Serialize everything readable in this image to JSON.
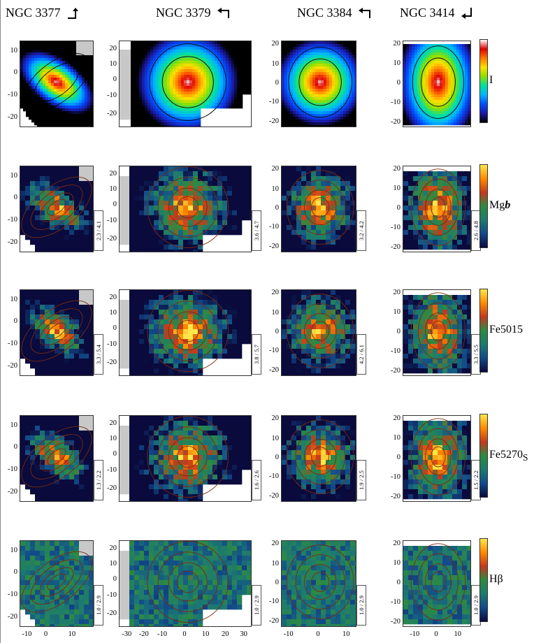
{
  "galaxies": [
    {
      "name": "NGC 3377",
      "arrow": "up-right-arrow"
    },
    {
      "name": "NGC 3379",
      "arrow": "up-left-arrow"
    },
    {
      "name": "NGC 3384",
      "arrow": "up-left-arrow"
    },
    {
      "name": "NGC 3414",
      "arrow": "down-left-arrow"
    }
  ],
  "maps": [
    {
      "label": "I",
      "ranges": [
        "",
        "",
        "",
        ""
      ]
    },
    {
      "label": "Mgb",
      "ranges": [
        "2.3 / 4.1",
        "3.6 / 4.7",
        "3.2 / 4.2",
        "2.6 / 4.8"
      ]
    },
    {
      "label": "Fe5015",
      "ranges": [
        "3.3 / 5.4",
        "3.8 / 5.7",
        "4.2 / 6.1",
        "3.3 / 5.5"
      ]
    },
    {
      "label": "Fe5270s",
      "ranges": [
        "1.3 / 2.2",
        "1.6 / 2.6",
        "1.9 / 2.5",
        "1.5 / 2.2"
      ]
    },
    {
      "label": "Hβ",
      "ranges": [
        "1.0 / 2.9",
        "1.0 / 2.9",
        "1.0 / 2.9",
        "1.0 / 2.9"
      ]
    }
  ],
  "yticks": [
    [
      "10",
      "0",
      "-10",
      "-20"
    ],
    [
      "20",
      "10",
      "0",
      "-10",
      "-20"
    ],
    [
      "20",
      "10",
      "0",
      "-10",
      "-20"
    ],
    [
      "20",
      "10",
      "0",
      "-10",
      "-20"
    ]
  ],
  "xticks": [
    [
      "-10",
      "0",
      "10"
    ],
    [
      "-30",
      "-20",
      "-10",
      "0",
      "10",
      "20",
      "30"
    ],
    [
      "-10",
      "0",
      "10"
    ],
    [
      "-10",
      "0",
      "10"
    ]
  ],
  "colors": {
    "intensity_scale": [
      "#000000",
      "#1a1aa8",
      "#0050ff",
      "#00b4ff",
      "#00e0a0",
      "#8ce000",
      "#ffe000",
      "#ff7800",
      "#e00000",
      "#ffffff"
    ],
    "index_scale": [
      "#0a0a3c",
      "#124a8a",
      "#1c7a70",
      "#2e8a40",
      "#c23a1e",
      "#ff8a00",
      "#ffe84a"
    ],
    "masked_region": "#c8c8c8"
  }
}
